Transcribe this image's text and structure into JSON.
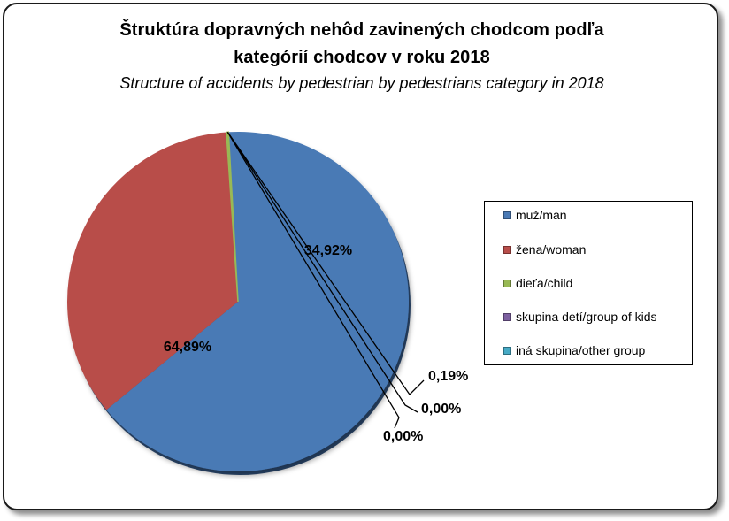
{
  "chart_data": {
    "type": "pie",
    "title_line1": "Štruktúra dopravných nehôd zavinených chodcom podľa",
    "title_line2": "kategórií chodcov v roku 2018",
    "subtitle": "Structure of accidents by pedestrian by pedestrians category in 2018",
    "slices": [
      {
        "label": "muž/man",
        "value": 64.89,
        "display": "64,89%",
        "color": "#4a7ab5"
      },
      {
        "label": "žena/woman",
        "value": 34.92,
        "display": "34,92%",
        "color": "#b84d4a"
      },
      {
        "label": "dieťa/child",
        "value": 0.19,
        "display": "0,19%",
        "color": "#98b954"
      },
      {
        "label": "skupina detí/group of kids",
        "value": 0.0,
        "display": "0,00%",
        "color": "#7d60a0"
      },
      {
        "label": "iná skupina/other group",
        "value": 0.0,
        "display": "0,00%",
        "color": "#46aac5"
      }
    ],
    "legend_placement": "right"
  }
}
